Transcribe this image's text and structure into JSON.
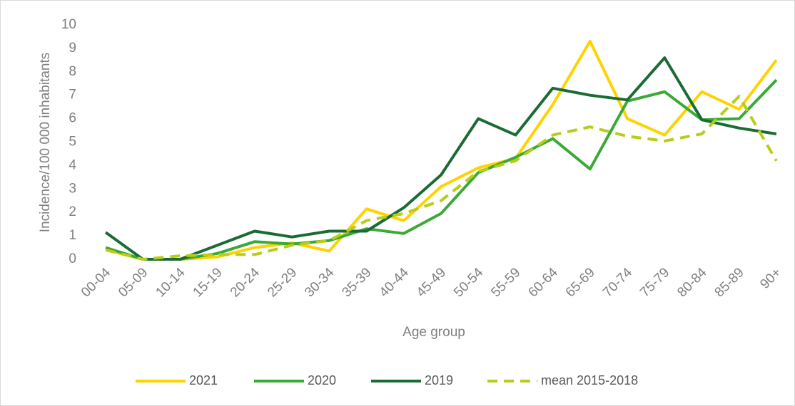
{
  "chart_data": {
    "type": "line",
    "categories": [
      "00-04",
      "05-09",
      "10-14",
      "15-19",
      "20-24",
      "25-29",
      "30-34",
      "35-39",
      "40-44",
      "45-49",
      "50-54",
      "55-59",
      "60-64",
      "65-69",
      "70-74",
      "75-79",
      "80-84",
      "85-89",
      "90+"
    ],
    "series": [
      {
        "name": "2021",
        "color": "#ffd200",
        "values": [
          0.4,
          0,
          0,
          0.1,
          0.5,
          0.7,
          0.35,
          2.15,
          1.65,
          3.1,
          3.9,
          4.3,
          6.6,
          9.3,
          6.0,
          5.3,
          7.15,
          6.4,
          8.5
        ]
      },
      {
        "name": "2020",
        "color": "#3aaa35",
        "values": [
          0.5,
          0,
          0,
          0.25,
          0.75,
          0.65,
          0.8,
          1.3,
          1.1,
          1.95,
          3.7,
          4.35,
          5.15,
          3.85,
          6.75,
          7.15,
          5.95,
          6.0,
          7.65
        ]
      },
      {
        "name": "2019",
        "color": "#1b6b35",
        "values": [
          1.15,
          0,
          0,
          0.6,
          1.2,
          0.95,
          1.2,
          1.2,
          2.2,
          3.6,
          6.0,
          5.3,
          7.3,
          7.0,
          6.8,
          8.6,
          5.95,
          5.6,
          5.35
        ]
      },
      {
        "name": "mean 2015-2018",
        "color": "#b8cc1a",
        "dashed": true,
        "values": [
          0.4,
          0,
          0.15,
          0.2,
          0.2,
          0.6,
          0.8,
          1.65,
          1.95,
          2.5,
          3.75,
          4.2,
          5.3,
          5.65,
          5.25,
          5.05,
          5.35,
          6.95,
          4.2
        ]
      }
    ],
    "xlabel": "Age group",
    "ylabel": "Incidence/100 000 inhabitants",
    "ylim": [
      0,
      10
    ],
    "yticks": [
      0,
      1,
      2,
      3,
      4,
      5,
      6,
      7,
      8,
      9,
      10
    ],
    "grid": false,
    "legend": "bottom"
  }
}
